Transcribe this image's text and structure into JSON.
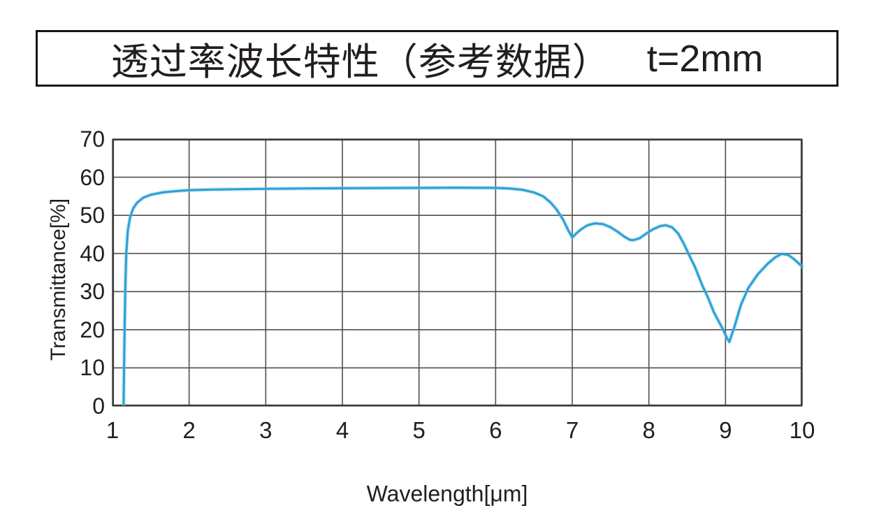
{
  "title": {
    "main": "透过率波长特性（参考数据）",
    "thickness": "t=2mm"
  },
  "colors": {
    "curve": "#2EA2D3",
    "curve_glow": "rgba(130,203,234,0.35)",
    "grid": "#4f4f4f",
    "frame": "#3d3d3d",
    "text": "#221e1e",
    "title_border": "#141414",
    "background": "#ffffff"
  },
  "chart_data": {
    "type": "line",
    "title": "透过率波长特性（参考数据） t=2mm",
    "xlabel": "Wavelength[μm]",
    "ylabel": "Transmittance[%]",
    "xlim": [
      1,
      10
    ],
    "ylim": [
      0,
      70
    ],
    "x_ticks": [
      1,
      2,
      3,
      4,
      5,
      6,
      7,
      8,
      9,
      10
    ],
    "y_ticks": [
      0,
      10,
      20,
      30,
      40,
      50,
      60,
      70
    ],
    "x_tick_labels": [
      "1",
      "2",
      "3",
      "4",
      "5",
      "6",
      "7",
      "8",
      "9",
      "10"
    ],
    "y_tick_labels": [
      "0",
      "10",
      "20",
      "30",
      "40",
      "50",
      "60",
      "70"
    ],
    "grid": true,
    "legend": false,
    "series": [
      {
        "name": "Transmittance (t=2mm)",
        "color": "#2EA2D3",
        "points": [
          [
            1.145,
            0.5
          ],
          [
            1.15,
            8
          ],
          [
            1.16,
            22
          ],
          [
            1.17,
            33
          ],
          [
            1.18,
            40
          ],
          [
            1.2,
            46
          ],
          [
            1.23,
            49.5
          ],
          [
            1.27,
            51.8
          ],
          [
            1.32,
            53.3
          ],
          [
            1.4,
            54.6
          ],
          [
            1.5,
            55.4
          ],
          [
            1.65,
            56.0
          ],
          [
            1.8,
            56.3
          ],
          [
            2.0,
            56.6
          ],
          [
            2.3,
            56.75
          ],
          [
            2.6,
            56.85
          ],
          [
            3.0,
            56.95
          ],
          [
            3.5,
            57.05
          ],
          [
            4.0,
            57.1
          ],
          [
            4.5,
            57.15
          ],
          [
            5.0,
            57.2
          ],
          [
            5.5,
            57.25
          ],
          [
            6.0,
            57.2
          ],
          [
            6.2,
            57.0
          ],
          [
            6.35,
            56.7
          ],
          [
            6.5,
            56.0
          ],
          [
            6.62,
            55.0
          ],
          [
            6.72,
            53.3
          ],
          [
            6.8,
            51.4
          ],
          [
            6.88,
            48.9
          ],
          [
            6.95,
            46.0
          ],
          [
            7.0,
            44.2
          ],
          [
            7.06,
            45.4
          ],
          [
            7.12,
            46.4
          ],
          [
            7.2,
            47.4
          ],
          [
            7.3,
            47.9
          ],
          [
            7.4,
            47.7
          ],
          [
            7.5,
            46.9
          ],
          [
            7.6,
            45.6
          ],
          [
            7.68,
            44.4
          ],
          [
            7.75,
            43.6
          ],
          [
            7.8,
            43.5
          ],
          [
            7.88,
            44.0
          ],
          [
            7.95,
            45.0
          ],
          [
            8.05,
            46.3
          ],
          [
            8.15,
            47.2
          ],
          [
            8.22,
            47.4
          ],
          [
            8.3,
            46.9
          ],
          [
            8.38,
            45.3
          ],
          [
            8.45,
            42.8
          ],
          [
            8.52,
            39.8
          ],
          [
            8.6,
            36.5
          ],
          [
            8.7,
            31.5
          ],
          [
            8.77,
            28.5
          ],
          [
            8.85,
            24.5
          ],
          [
            8.97,
            20.0
          ],
          [
            9.02,
            17.8
          ],
          [
            9.05,
            16.8
          ],
          [
            9.12,
            21.0
          ],
          [
            9.2,
            26.5
          ],
          [
            9.3,
            31.0
          ],
          [
            9.42,
            34.5
          ],
          [
            9.55,
            37.3
          ],
          [
            9.65,
            39.0
          ],
          [
            9.73,
            39.9
          ],
          [
            9.82,
            39.6
          ],
          [
            9.9,
            38.4
          ],
          [
            10.0,
            36.6
          ]
        ]
      }
    ]
  }
}
